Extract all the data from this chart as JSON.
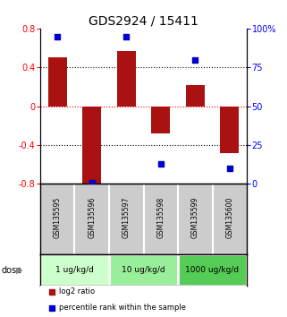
{
  "title": "GDS2924 / 15411",
  "samples": [
    "GSM135595",
    "GSM135596",
    "GSM135597",
    "GSM135598",
    "GSM135599",
    "GSM135600"
  ],
  "log2_ratio": [
    0.5,
    -0.82,
    0.57,
    -0.28,
    0.22,
    -0.48
  ],
  "percentile_rank": [
    0.95,
    0.01,
    0.95,
    0.13,
    0.8,
    0.1
  ],
  "bar_color": "#aa1111",
  "dot_color": "#0000cc",
  "ylim_left": [
    -0.8,
    0.8
  ],
  "ylim_right": [
    0,
    1.0
  ],
  "yticks_left": [
    -0.8,
    -0.4,
    0.0,
    0.4,
    0.8
  ],
  "ytick_labels_left": [
    "-0.8",
    "-0.4",
    "0",
    "0.4",
    "0.8"
  ],
  "yticks_right": [
    0,
    0.25,
    0.5,
    0.75,
    1.0
  ],
  "ytick_labels_right": [
    "0",
    "25",
    "50",
    "75",
    "100%"
  ],
  "hlines_black": [
    -0.4,
    0.4
  ],
  "hline_red": 0.0,
  "doses": [
    {
      "label": "1 ug/kg/d",
      "samples": [
        0,
        1
      ],
      "color": "#ccffcc"
    },
    {
      "label": "10 ug/kg/d",
      "samples": [
        2,
        3
      ],
      "color": "#99ee99"
    },
    {
      "label": "1000 ug/kg/d",
      "samples": [
        4,
        5
      ],
      "color": "#55cc55"
    }
  ],
  "dose_label": "dose",
  "legend_red": "log2 ratio",
  "legend_blue": "percentile rank within the sample",
  "bg_color_plot": "#ffffff",
  "bg_color_samples": "#cccccc",
  "title_fontsize": 10,
  "bar_width": 0.55
}
